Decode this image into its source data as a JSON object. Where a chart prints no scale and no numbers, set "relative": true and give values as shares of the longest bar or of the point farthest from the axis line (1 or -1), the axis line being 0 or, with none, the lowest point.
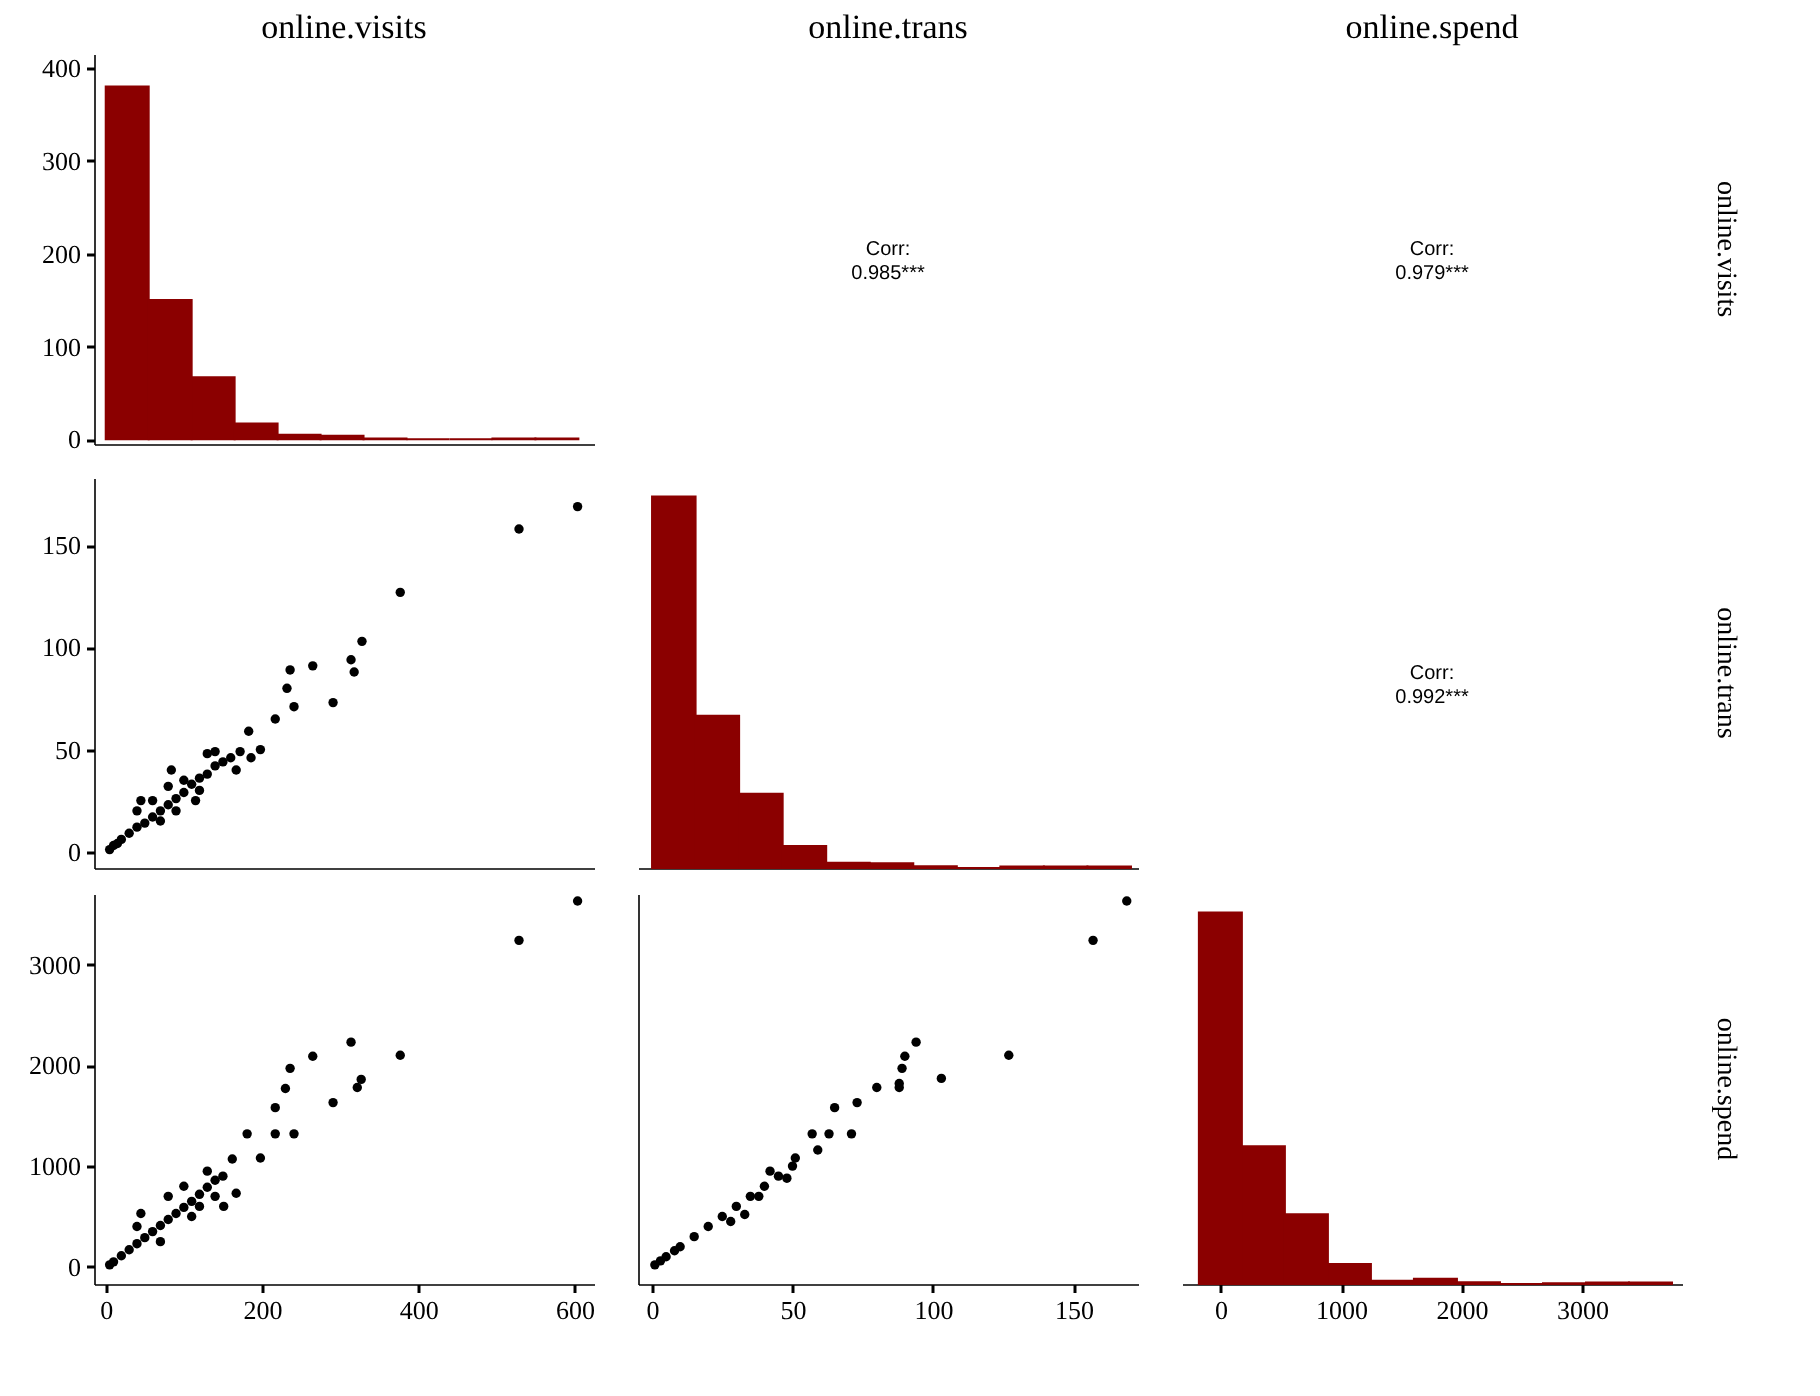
{
  "chart_data": [
    {
      "type": "histogram",
      "title": "online.visits",
      "bins": [
        0,
        55,
        110,
        165,
        220,
        275,
        330,
        385,
        440,
        495,
        550,
        605
      ],
      "values": [
        380,
        150,
        67,
        17,
        5,
        4,
        1,
        0,
        0,
        1,
        1
      ],
      "color": "#8b0000",
      "xlim": [
        -15,
        625
      ],
      "ylim": [
        -5,
        415
      ],
      "yticks": [
        0,
        100,
        200,
        300,
        400
      ],
      "tick_labels": "y"
    },
    {
      "type": "other",
      "title": "online.trans",
      "annotations": [
        "Corr:\n0.985***"
      ]
    },
    {
      "type": "other",
      "title": "online.spend",
      "annotations": [
        "Corr:\n0.979***"
      ],
      "y2label": "online.visits"
    },
    {
      "type": "scatter",
      "x": [
        604,
        529,
        377,
        328,
        314,
        318,
        265,
        236,
        232,
        241,
        291,
        217,
        183,
        198,
        186,
        172,
        140,
        84,
        45,
        115,
        167,
        5,
        10,
        15,
        20,
        30,
        40,
        50,
        60,
        70,
        80,
        90,
        100,
        110,
        120,
        130,
        140,
        150,
        160,
        60,
        80,
        100,
        120,
        40,
        70,
        130,
        90
      ],
      "values": [
        169,
        158,
        127,
        103,
        94,
        88,
        91,
        89,
        80,
        71,
        73,
        65,
        59,
        50,
        46,
        49,
        49,
        40,
        25,
        25,
        40,
        1,
        3,
        4,
        6,
        9,
        12,
        14,
        17,
        20,
        23,
        26,
        29,
        33,
        36,
        38,
        42,
        44,
        46,
        25,
        32,
        35,
        30,
        20,
        15,
        48,
        20
      ],
      "color": "#000000",
      "marker": "circle",
      "xlim": [
        -15,
        625
      ],
      "ylim": [
        -8,
        183
      ],
      "yticks": [
        0,
        50,
        100,
        150
      ],
      "tick_labels": "y"
    },
    {
      "type": "bar",
      "relative": true,
      "x": [
        7.75,
        23.25,
        38.75,
        54.25,
        69.75,
        85.25,
        100.75,
        116.25,
        131.75,
        147.25,
        162.75
      ],
      "values": [
        1,
        0.41,
        0.2,
        0.059,
        0.014,
        0.013,
        0.005,
        0,
        0.004,
        0.004,
        0.004
      ],
      "color": "#8b0000",
      "xlim": [
        -5,
        173
      ],
      "tick_labels": false
    },
    {
      "type": "other",
      "annotations": [
        "Corr:\n0.992***"
      ],
      "y2label": "online.trans"
    },
    {
      "type": "scatter",
      "x": [
        604,
        529,
        314,
        377,
        265,
        236,
        230,
        327,
        322,
        291,
        217,
        217,
        241,
        181,
        198,
        162,
        167,
        151,
        45,
        5,
        10,
        20,
        30,
        40,
        50,
        60,
        70,
        80,
        90,
        100,
        110,
        120,
        130,
        140,
        150,
        80,
        100,
        120,
        130,
        140,
        110,
        70,
        40
      ],
      "values": [
        3630,
        3240,
        2230,
        2100,
        2090,
        1970,
        1770,
        1860,
        1780,
        1630,
        1580,
        1320,
        1320,
        1320,
        1080,
        1070,
        730,
        600,
        530,
        20,
        50,
        110,
        170,
        230,
        290,
        350,
        410,
        470,
        530,
        590,
        650,
        720,
        790,
        860,
        900,
        700,
        800,
        600,
        950,
        700,
        500,
        250,
        400
      ],
      "color": "#000000",
      "marker": "circle",
      "xlim": [
        -15,
        625
      ],
      "xticks": [
        0,
        200,
        400,
        600
      ],
      "ylim": [
        -170,
        3700
      ],
      "yticks": [
        0,
        1000,
        2000,
        3000
      ]
    },
    {
      "type": "scatter",
      "x": [
        169,
        157,
        127,
        94,
        90,
        89,
        88,
        88,
        103,
        80,
        73,
        65,
        57,
        63,
        71,
        59,
        51,
        1,
        3,
        5,
        8,
        10,
        15,
        20,
        25,
        30,
        35,
        40,
        45,
        50,
        28,
        42,
        38,
        33,
        48
      ],
      "values": [
        3630,
        3240,
        2100,
        2230,
        2090,
        1970,
        1820,
        1780,
        1870,
        1780,
        1630,
        1580,
        1320,
        1320,
        1320,
        1160,
        1080,
        20,
        60,
        100,
        160,
        200,
        300,
        400,
        500,
        600,
        700,
        800,
        900,
        1000,
        450,
        950,
        700,
        520,
        880
      ],
      "color": "#000000",
      "marker": "circle",
      "xlim": [
        -5,
        173
      ],
      "xticks": [
        0,
        50,
        100,
        150
      ],
      "ylim": [
        -170,
        3700
      ],
      "tick_labels": "x"
    },
    {
      "type": "bar",
      "relative": true,
      "x": [
        -1.5,
        355.5,
        712.5,
        1069.5,
        1426.5,
        1783.5,
        2140.5,
        2497.5,
        2854.5,
        3211.5,
        3568.5
      ],
      "values": [
        1,
        0.371,
        0.188,
        0.054,
        0.009,
        0.014,
        0.005,
        0,
        0.002,
        0.004,
        0.004
      ],
      "color": "#8b0000",
      "xlim": [
        -320,
        3830
      ],
      "xticks": [
        0,
        1000,
        2000,
        3000
      ],
      "tick_labels": "x",
      "y2label": "online.spend"
    }
  ]
}
